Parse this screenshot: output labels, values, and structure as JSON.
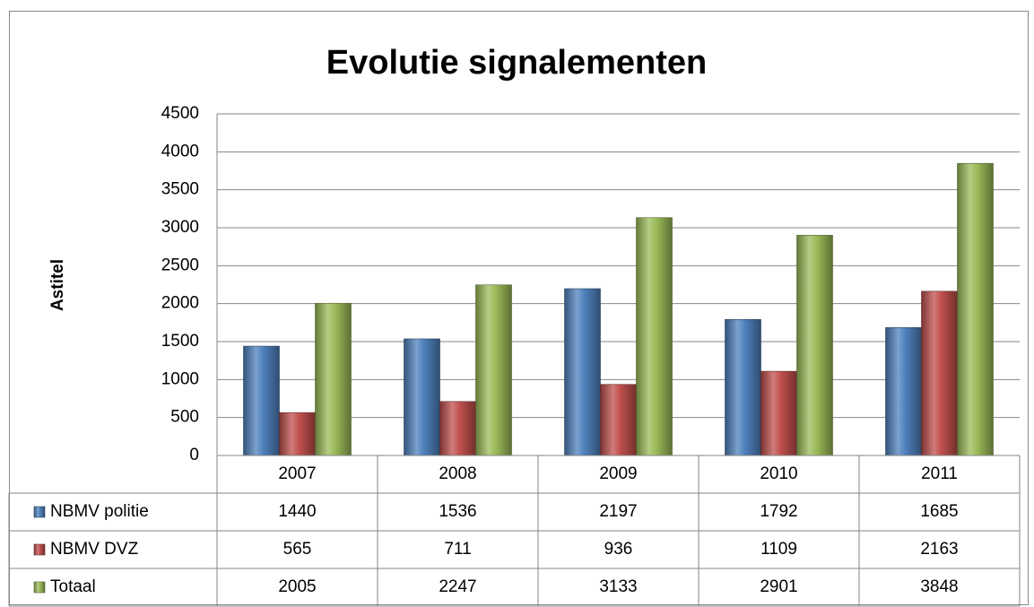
{
  "chart_data": {
    "type": "bar",
    "title": "Evolutie signalementen",
    "y_label": "Astitel",
    "categories": [
      "2007",
      "2008",
      "2009",
      "2010",
      "2011"
    ],
    "series": [
      {
        "name": "NBMV politie",
        "color": "#4f81bd",
        "values": [
          1440,
          1536,
          2197,
          1792,
          1685
        ]
      },
      {
        "name": "NBMV DVZ",
        "color": "#c0504d",
        "values": [
          565,
          711,
          936,
          1109,
          2163
        ]
      },
      {
        "name": "Totaal",
        "color": "#9bbb59",
        "values": [
          2005,
          2247,
          3133,
          2901,
          3848
        ]
      }
    ],
    "ylim": [
      0,
      4500
    ],
    "yticks": [
      0,
      500,
      1000,
      1500,
      2000,
      2500,
      3000,
      3500,
      4000,
      4500
    ],
    "grid": true,
    "data_table": true
  }
}
